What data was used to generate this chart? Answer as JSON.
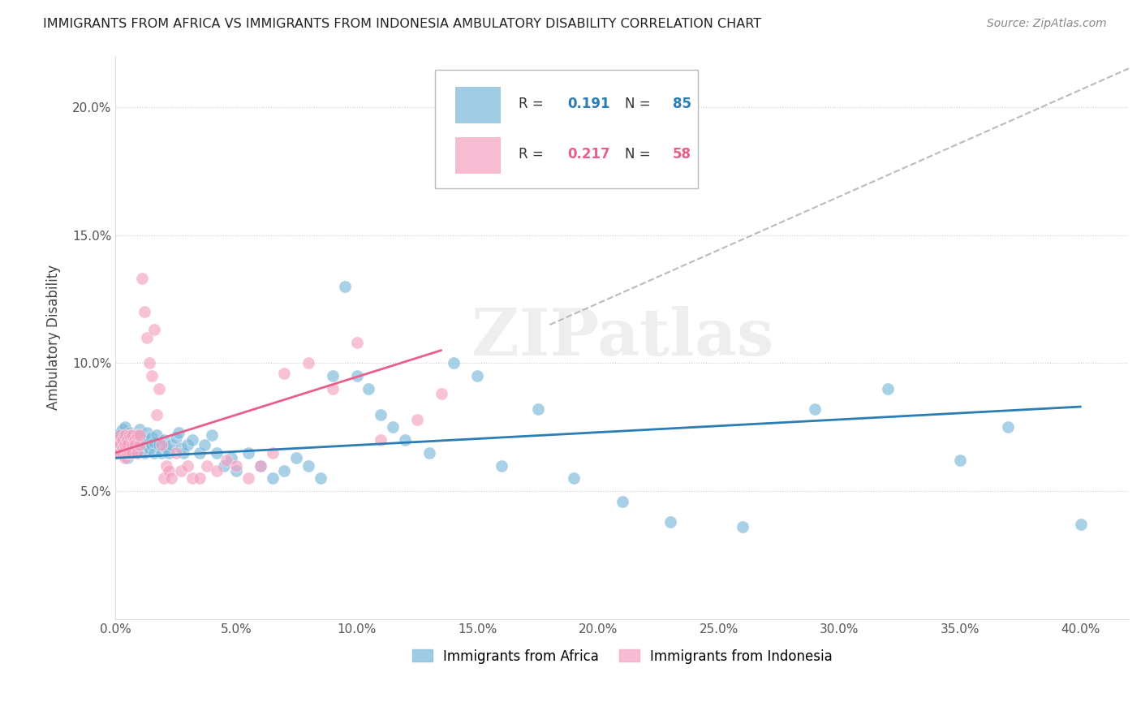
{
  "title": "IMMIGRANTS FROM AFRICA VS IMMIGRANTS FROM INDONESIA AMBULATORY DISABILITY CORRELATION CHART",
  "source": "Source: ZipAtlas.com",
  "ylabel": "Ambulatory Disability",
  "color_africa": "#7ab8d9",
  "color_indonesia": "#f4a0c0",
  "xlim": [
    0.0,
    0.42
  ],
  "ylim": [
    0.0,
    0.22
  ],
  "xtick_positions": [
    0.0,
    0.05,
    0.1,
    0.15,
    0.2,
    0.25,
    0.3,
    0.35,
    0.4
  ],
  "xtick_labels": [
    "0.0%",
    "5.0%",
    "10.0%",
    "15.0%",
    "20.0%",
    "25.0%",
    "30.0%",
    "35.0%",
    "40.0%"
  ],
  "ytick_positions": [
    0.05,
    0.1,
    0.15,
    0.2
  ],
  "ytick_labels": [
    "5.0%",
    "10.0%",
    "15.0%",
    "20.0%"
  ],
  "legend_africa_r": "0.191",
  "legend_africa_n": "85",
  "legend_indonesia_r": "0.217",
  "legend_indonesia_n": "58",
  "africa_trend": [
    0.0,
    0.4,
    0.063,
    0.083
  ],
  "indonesia_trend": [
    0.0,
    0.135,
    0.065,
    0.105
  ],
  "dash_line": [
    0.18,
    0.42,
    0.115,
    0.215
  ],
  "watermark": "ZIPatlas",
  "africa_x": [
    0.001,
    0.001,
    0.002,
    0.002,
    0.002,
    0.003,
    0.003,
    0.003,
    0.004,
    0.004,
    0.004,
    0.005,
    0.005,
    0.005,
    0.006,
    0.006,
    0.006,
    0.007,
    0.007,
    0.008,
    0.008,
    0.009,
    0.009,
    0.01,
    0.01,
    0.01,
    0.011,
    0.011,
    0.012,
    0.012,
    0.013,
    0.013,
    0.014,
    0.015,
    0.015,
    0.016,
    0.016,
    0.017,
    0.018,
    0.019,
    0.02,
    0.021,
    0.022,
    0.023,
    0.025,
    0.026,
    0.027,
    0.028,
    0.03,
    0.032,
    0.035,
    0.037,
    0.04,
    0.042,
    0.045,
    0.048,
    0.05,
    0.055,
    0.06,
    0.065,
    0.07,
    0.075,
    0.08,
    0.085,
    0.09,
    0.095,
    0.1,
    0.105,
    0.11,
    0.115,
    0.12,
    0.13,
    0.14,
    0.15,
    0.16,
    0.175,
    0.19,
    0.21,
    0.23,
    0.26,
    0.29,
    0.32,
    0.35,
    0.37,
    0.4
  ],
  "africa_y": [
    0.07,
    0.072,
    0.068,
    0.073,
    0.065,
    0.071,
    0.074,
    0.066,
    0.069,
    0.072,
    0.075,
    0.068,
    0.071,
    0.063,
    0.07,
    0.073,
    0.065,
    0.068,
    0.072,
    0.067,
    0.07,
    0.065,
    0.069,
    0.068,
    0.072,
    0.074,
    0.067,
    0.07,
    0.065,
    0.068,
    0.07,
    0.073,
    0.067,
    0.068,
    0.071,
    0.065,
    0.069,
    0.072,
    0.068,
    0.065,
    0.07,
    0.067,
    0.065,
    0.068,
    0.071,
    0.073,
    0.067,
    0.065,
    0.068,
    0.07,
    0.065,
    0.068,
    0.072,
    0.065,
    0.06,
    0.063,
    0.058,
    0.065,
    0.06,
    0.055,
    0.058,
    0.063,
    0.06,
    0.055,
    0.095,
    0.13,
    0.095,
    0.09,
    0.08,
    0.075,
    0.07,
    0.065,
    0.1,
    0.095,
    0.06,
    0.082,
    0.055,
    0.046,
    0.038,
    0.036,
    0.082,
    0.09,
    0.062,
    0.075,
    0.037
  ],
  "indonesia_x": [
    0.001,
    0.001,
    0.001,
    0.002,
    0.002,
    0.002,
    0.003,
    0.003,
    0.003,
    0.004,
    0.004,
    0.004,
    0.005,
    0.005,
    0.005,
    0.006,
    0.006,
    0.007,
    0.007,
    0.007,
    0.008,
    0.008,
    0.009,
    0.009,
    0.01,
    0.01,
    0.011,
    0.012,
    0.013,
    0.014,
    0.015,
    0.016,
    0.017,
    0.018,
    0.019,
    0.02,
    0.021,
    0.022,
    0.023,
    0.025,
    0.027,
    0.03,
    0.032,
    0.035,
    0.038,
    0.042,
    0.046,
    0.05,
    0.055,
    0.06,
    0.065,
    0.07,
    0.08,
    0.09,
    0.1,
    0.11,
    0.125,
    0.135
  ],
  "indonesia_y": [
    0.068,
    0.065,
    0.07,
    0.068,
    0.065,
    0.072,
    0.067,
    0.07,
    0.065,
    0.068,
    0.072,
    0.063,
    0.07,
    0.065,
    0.068,
    0.072,
    0.065,
    0.068,
    0.072,
    0.065,
    0.07,
    0.068,
    0.072,
    0.065,
    0.068,
    0.072,
    0.133,
    0.12,
    0.11,
    0.1,
    0.095,
    0.113,
    0.08,
    0.09,
    0.068,
    0.055,
    0.06,
    0.058,
    0.055,
    0.065,
    0.058,
    0.06,
    0.055,
    0.055,
    0.06,
    0.058,
    0.062,
    0.06,
    0.055,
    0.06,
    0.065,
    0.096,
    0.1,
    0.09,
    0.108,
    0.07,
    0.078,
    0.088
  ]
}
